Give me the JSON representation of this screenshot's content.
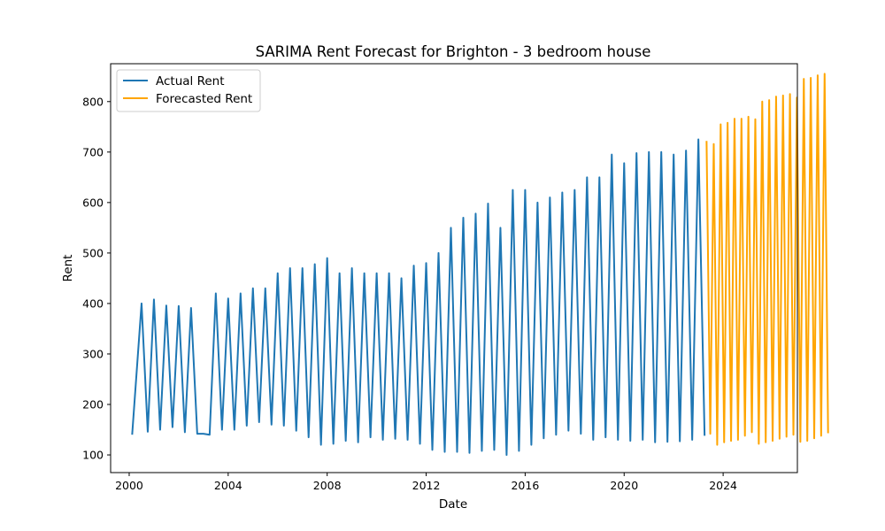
{
  "chart_data": {
    "type": "line",
    "title": "SARIMA Rent Forecast for Brighton - 3 bedroom house",
    "xlabel": "Date",
    "ylabel": "Rent",
    "xlim": [
      1999.25,
      2027.0
    ],
    "ylim": [
      65,
      875
    ],
    "x_ticks": [
      2000,
      2004,
      2008,
      2012,
      2016,
      2020,
      2024
    ],
    "x_tick_labels": [
      "2000",
      "2004",
      "2008",
      "2012",
      "2016",
      "2020",
      "2024"
    ],
    "y_ticks": [
      100,
      200,
      300,
      400,
      500,
      600,
      700,
      800
    ],
    "y_tick_labels": [
      "100",
      "200",
      "300",
      "400",
      "500",
      "600",
      "700",
      "800"
    ],
    "grid": false,
    "legend_position": "top-left",
    "series": [
      {
        "name": "Actual Rent",
        "color": "#1f77b4",
        "points": [
          [
            2000.12,
            140
          ],
          [
            2000.5,
            400
          ],
          [
            2000.75,
            146
          ],
          [
            2001.0,
            408
          ],
          [
            2001.25,
            150
          ],
          [
            2001.5,
            396
          ],
          [
            2001.75,
            155
          ],
          [
            2002.0,
            395
          ],
          [
            2002.25,
            145
          ],
          [
            2002.5,
            391
          ],
          [
            2002.75,
            142
          ],
          [
            2003.0,
            142
          ],
          [
            2003.25,
            140
          ],
          [
            2003.5,
            420
          ],
          [
            2003.75,
            150
          ],
          [
            2004.0,
            410
          ],
          [
            2004.25,
            150
          ],
          [
            2004.5,
            420
          ],
          [
            2004.75,
            158
          ],
          [
            2005.0,
            430
          ],
          [
            2005.25,
            165
          ],
          [
            2005.5,
            430
          ],
          [
            2005.75,
            160
          ],
          [
            2006.0,
            460
          ],
          [
            2006.25,
            158
          ],
          [
            2006.5,
            470
          ],
          [
            2006.75,
            148
          ],
          [
            2007.0,
            470
          ],
          [
            2007.25,
            135
          ],
          [
            2007.5,
            478
          ],
          [
            2007.75,
            120
          ],
          [
            2008.0,
            490
          ],
          [
            2008.25,
            122
          ],
          [
            2008.5,
            460
          ],
          [
            2008.75,
            128
          ],
          [
            2009.0,
            470
          ],
          [
            2009.25,
            125
          ],
          [
            2009.5,
            460
          ],
          [
            2009.75,
            135
          ],
          [
            2010.0,
            460
          ],
          [
            2010.25,
            130
          ],
          [
            2010.5,
            460
          ],
          [
            2010.75,
            132
          ],
          [
            2011.0,
            450
          ],
          [
            2011.25,
            130
          ],
          [
            2011.5,
            475
          ],
          [
            2011.75,
            122
          ],
          [
            2012.0,
            480
          ],
          [
            2012.25,
            110
          ],
          [
            2012.5,
            500
          ],
          [
            2012.75,
            106
          ],
          [
            2013.0,
            550
          ],
          [
            2013.25,
            106
          ],
          [
            2013.5,
            570
          ],
          [
            2013.75,
            104
          ],
          [
            2014.0,
            578
          ],
          [
            2014.25,
            108
          ],
          [
            2014.5,
            598
          ],
          [
            2014.75,
            110
          ],
          [
            2015.0,
            550
          ],
          [
            2015.25,
            100
          ],
          [
            2015.5,
            625
          ],
          [
            2015.75,
            108
          ],
          [
            2016.0,
            625
          ],
          [
            2016.25,
            120
          ],
          [
            2016.5,
            600
          ],
          [
            2016.75,
            133
          ],
          [
            2017.0,
            610
          ],
          [
            2017.25,
            140
          ],
          [
            2017.5,
            620
          ],
          [
            2017.75,
            148
          ],
          [
            2018.0,
            625
          ],
          [
            2018.25,
            142
          ],
          [
            2018.5,
            650
          ],
          [
            2018.75,
            130
          ],
          [
            2019.0,
            650
          ],
          [
            2019.25,
            135
          ],
          [
            2019.5,
            695
          ],
          [
            2019.75,
            130
          ],
          [
            2020.0,
            678
          ],
          [
            2020.25,
            128
          ],
          [
            2020.5,
            698
          ],
          [
            2020.75,
            130
          ],
          [
            2021.0,
            700
          ],
          [
            2021.25,
            125
          ],
          [
            2021.5,
            700
          ],
          [
            2021.75,
            126
          ],
          [
            2022.0,
            695
          ],
          [
            2022.25,
            127
          ],
          [
            2022.5,
            703
          ],
          [
            2022.75,
            130
          ],
          [
            2023.0,
            725
          ],
          [
            2023.25,
            138
          ]
        ]
      },
      {
        "name": "Forecasted Rent",
        "color": "#ffa500",
        "points": [
          [
            2023.33,
            722
          ],
          [
            2023.48,
            142
          ],
          [
            2023.62,
            716
          ],
          [
            2023.76,
            120
          ],
          [
            2023.9,
            755
          ],
          [
            2024.04,
            125
          ],
          [
            2024.18,
            758
          ],
          [
            2024.32,
            128
          ],
          [
            2024.46,
            766
          ],
          [
            2024.6,
            130
          ],
          [
            2024.74,
            766
          ],
          [
            2024.88,
            138
          ],
          [
            2025.02,
            770
          ],
          [
            2025.16,
            145
          ],
          [
            2025.3,
            765
          ],
          [
            2025.44,
            122
          ],
          [
            2025.58,
            800
          ],
          [
            2025.72,
            125
          ],
          [
            2025.86,
            803
          ],
          [
            2026.0,
            128
          ],
          [
            2026.14,
            810
          ],
          [
            2026.28,
            132
          ],
          [
            2026.42,
            812
          ],
          [
            2026.56,
            136
          ],
          [
            2026.7,
            815
          ],
          [
            2026.84,
            140
          ],
          [
            2026.98,
            808
          ],
          [
            2027.12,
            126
          ],
          [
            2027.26,
            845
          ],
          [
            2027.4,
            128
          ],
          [
            2027.54,
            847
          ],
          [
            2027.68,
            133
          ],
          [
            2027.82,
            852
          ],
          [
            2027.96,
            138
          ],
          [
            2028.1,
            855
          ],
          [
            2028.24,
            143
          ]
        ]
      }
    ]
  }
}
